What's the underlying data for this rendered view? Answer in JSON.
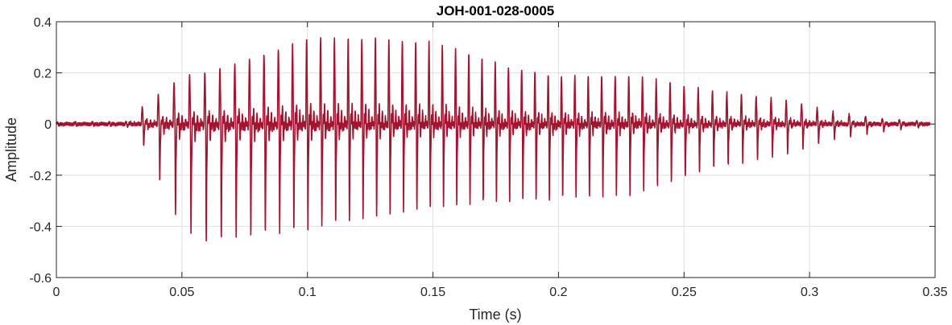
{
  "chart_data": {
    "type": "line",
    "title": "JOH-001-028-0005",
    "xlabel": "Time (s)",
    "ylabel": "Amplitude",
    "xlim": [
      0,
      0.35
    ],
    "ylim": [
      -0.6,
      0.4
    ],
    "xticks": [
      0,
      0.05,
      0.1,
      0.15,
      0.2,
      0.25,
      0.3,
      0.35
    ],
    "xtick_labels": [
      "0",
      "0.05",
      "0.1",
      "0.15",
      "0.2",
      "0.25",
      "0.3",
      "0.35"
    ],
    "yticks": [
      -0.6,
      -0.4,
      -0.2,
      0,
      0.2,
      0.4
    ],
    "ytick_labels": [
      "-0.6",
      "-0.4",
      "-0.2",
      "0",
      "0.2",
      "0.4"
    ],
    "grid": true,
    "series": [
      {
        "color": "#a2142f",
        "duration": 0.348,
        "envelope_time": [
          0,
          0.028,
          0.033,
          0.04,
          0.05,
          0.06,
          0.08,
          0.1,
          0.12,
          0.15,
          0.18,
          0.2,
          0.23,
          0.26,
          0.29,
          0.31,
          0.33,
          0.348
        ],
        "envelope_max": [
          0.008,
          0.01,
          0.06,
          0.12,
          0.2,
          0.22,
          0.28,
          0.36,
          0.36,
          0.34,
          0.24,
          0.2,
          0.2,
          0.14,
          0.1,
          0.05,
          0.02,
          0.01
        ],
        "envelope_min": [
          -0.008,
          -0.01,
          -0.05,
          -0.2,
          -0.41,
          -0.47,
          -0.44,
          -0.42,
          -0.38,
          -0.33,
          -0.31,
          -0.3,
          -0.28,
          -0.18,
          -0.12,
          -0.06,
          -0.03,
          -0.01
        ],
        "f0_hz": [
          140,
          190
        ]
      }
    ]
  }
}
